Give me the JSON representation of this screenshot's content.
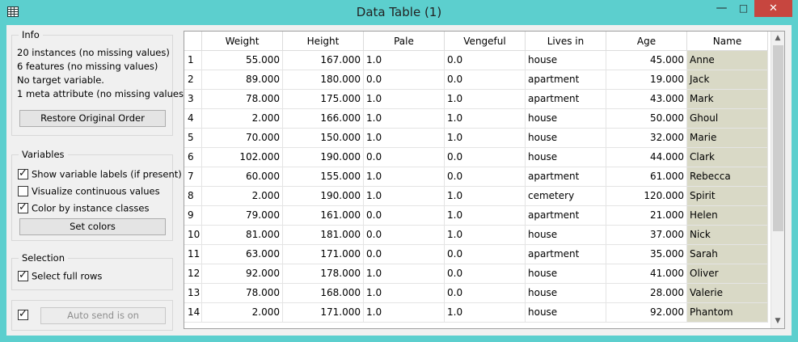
{
  "window": {
    "title": "Data Table (1)",
    "minimize_glyph": "—",
    "maximize_glyph": "□",
    "close_glyph": "✕"
  },
  "info": {
    "title": "Info",
    "lines": [
      "20 instances (no missing values)",
      "6 features (no missing values)",
      "No target variable.",
      "1 meta attribute (no missing values)"
    ],
    "restore_button": "Restore Original Order"
  },
  "variables": {
    "title": "Variables",
    "options": [
      {
        "label": "Show variable labels (if present)",
        "checked": true
      },
      {
        "label": "Visualize continuous values",
        "checked": false
      },
      {
        "label": "Color by instance classes",
        "checked": true
      }
    ],
    "set_colors_button": "Set colors"
  },
  "selection": {
    "title": "Selection",
    "select_full_rows": {
      "label": "Select full rows",
      "checked": true
    }
  },
  "autosend": {
    "checked": true,
    "button": "Auto send is on"
  },
  "table": {
    "columns": [
      "Weight",
      "Height",
      "Pale",
      "Vengeful",
      "Lives in",
      "Age",
      "Name"
    ],
    "rows": [
      [
        "1",
        "55.000",
        "167.000",
        "1.0",
        "0.0",
        "house",
        "45.000",
        "Anne"
      ],
      [
        "2",
        "89.000",
        "180.000",
        "0.0",
        "0.0",
        "apartment",
        "19.000",
        "Jack"
      ],
      [
        "3",
        "78.000",
        "175.000",
        "1.0",
        "1.0",
        "apartment",
        "43.000",
        "Mark"
      ],
      [
        "4",
        "2.000",
        "166.000",
        "1.0",
        "1.0",
        "house",
        "50.000",
        "Ghoul"
      ],
      [
        "5",
        "70.000",
        "150.000",
        "1.0",
        "1.0",
        "house",
        "32.000",
        "Marie"
      ],
      [
        "6",
        "102.000",
        "190.000",
        "0.0",
        "0.0",
        "house",
        "44.000",
        "Clark"
      ],
      [
        "7",
        "60.000",
        "155.000",
        "1.0",
        "0.0",
        "apartment",
        "61.000",
        "Rebecca"
      ],
      [
        "8",
        "2.000",
        "190.000",
        "1.0",
        "1.0",
        "cemetery",
        "120.000",
        "Spirit"
      ],
      [
        "9",
        "79.000",
        "161.000",
        "0.0",
        "1.0",
        "apartment",
        "21.000",
        "Helen"
      ],
      [
        "10",
        "81.000",
        "181.000",
        "0.0",
        "1.0",
        "house",
        "37.000",
        "Nick"
      ],
      [
        "11",
        "63.000",
        "171.000",
        "0.0",
        "0.0",
        "apartment",
        "35.000",
        "Sarah"
      ],
      [
        "12",
        "92.000",
        "178.000",
        "1.0",
        "0.0",
        "house",
        "41.000",
        "Oliver"
      ],
      [
        "13",
        "78.000",
        "168.000",
        "1.0",
        "0.0",
        "house",
        "28.000",
        "Valerie"
      ],
      [
        "14",
        "2.000",
        "171.000",
        "1.0",
        "1.0",
        "house",
        "92.000",
        "Phantom"
      ]
    ],
    "meta_color": "#d9d9c6",
    "scroll_up": "▲",
    "scroll_down": "▼"
  }
}
